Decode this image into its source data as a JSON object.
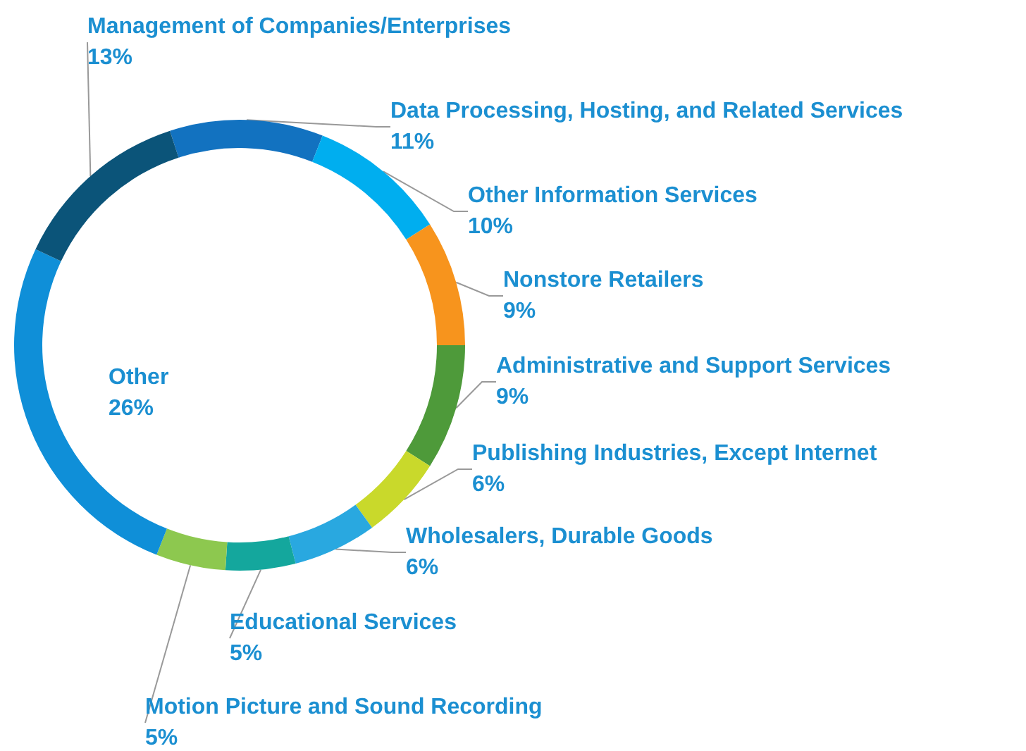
{
  "chart_data": {
    "type": "donut",
    "categories": [
      "Data Processing, Hosting, and Related Services",
      "Other Information Services",
      "Nonstore Retailers",
      "Administrative and Support Services",
      "Publishing Industries, Except Internet",
      "Wholesalers, Durable Goods",
      "Educational Services",
      "Motion Picture and Sound Recording",
      "Other",
      "Management of Companies/Enterprises"
    ],
    "values": [
      11,
      10,
      9,
      9,
      6,
      6,
      5,
      5,
      26,
      13
    ],
    "value_labels": [
      "11%",
      "10%",
      "9%",
      "9%",
      "6%",
      "6%",
      "5%",
      "5%",
      "26%",
      "13%"
    ],
    "colors": [
      "#1272c0",
      "#00aeef",
      "#f7941d",
      "#4e9a3a",
      "#c9d92b",
      "#29a8e0",
      "#14a79d",
      "#8dc84f",
      "#0f8fd8",
      "#0b5479"
    ],
    "legend": false
  }
}
